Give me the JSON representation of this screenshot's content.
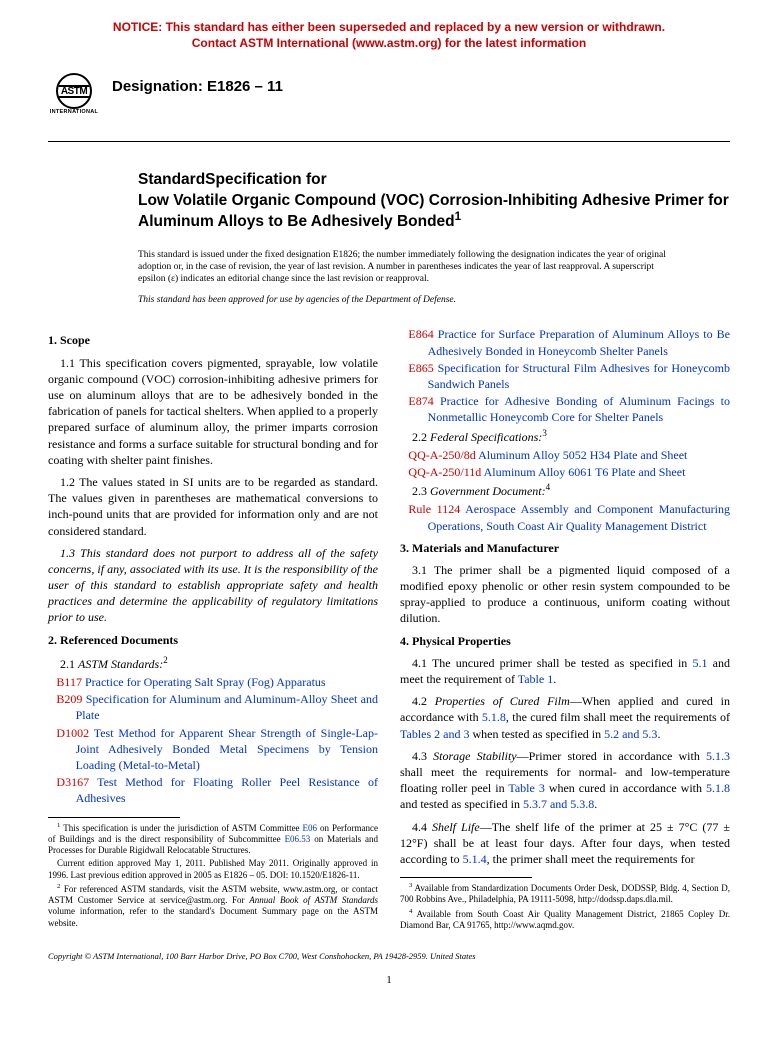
{
  "notice": {
    "line1": "NOTICE: This standard has either been superseded and replaced by a new version or withdrawn.",
    "line2": "Contact ASTM International (www.astm.org) for the latest information",
    "color": "#cc0000",
    "fontsize": 12
  },
  "logo": {
    "text": "ASTM",
    "sub": "INTERNATIONAL"
  },
  "designation": {
    "label": "Designation: E1826 – 11"
  },
  "title": {
    "lead": "StandardSpecification for",
    "main": "Low Volatile Organic Compound (VOC) Corrosion-Inhibiting Adhesive Primer for Aluminum Alloys to Be Adhesively Bonded",
    "sup": "1"
  },
  "issuance": "This standard is issued under the fixed designation E1826; the number immediately following the designation indicates the year of original adoption or, in the case of revision, the year of last revision. A number in parentheses indicates the year of last reapproval. A superscript epsilon (ε) indicates an editorial change since the last revision or reapproval.",
  "dod_note": "This standard has been approved for use by agencies of the Department of Defense.",
  "sections": {
    "scope": {
      "head": "1. Scope"
    },
    "refdocs": {
      "head": "2. Referenced Documents"
    },
    "materials": {
      "head": "3. Materials and Manufacturer"
    },
    "physprop": {
      "head": "4. Physical Properties"
    }
  },
  "scope": {
    "p1": "1.1 This specification covers pigmented, sprayable, low volatile organic compound (VOC) corrosion-inhibiting adhesive primers for use on aluminum alloys that are to be adhesively bonded in the fabrication of panels for tactical shelters. When applied to a properly prepared surface of aluminum alloy, the primer imparts corrosion resistance and forms a surface suitable for structural bonding and for coating with shelter paint finishes.",
    "p2": "1.2 The values stated in SI units are to be regarded as standard. The values given in parentheses are mathematical conversions to inch-pound units that are provided for information only and are not considered standard.",
    "p3": "1.3 This standard does not purport to address all of the safety concerns, if any, associated with its use. It is the responsibility of the user of this standard to establish appropriate safety and health practices and determine the applicability of regulatory limitations prior to use."
  },
  "ref": {
    "astm_head_num": "2.1 ",
    "astm_head": "ASTM Standards:",
    "astm_sup": "2",
    "fed_head_num": "2.2 ",
    "fed_head": "Federal Specifications:",
    "fed_sup": "3",
    "gov_head_num": "2.3 ",
    "gov_head": "Government Document:",
    "gov_sup": "4",
    "items": {
      "b117_code": "B117",
      "b117_txt": " Practice for Operating Salt Spray (Fog) Apparatus",
      "b209_code": "B209",
      "b209_txt": " Specification for Aluminum and Aluminum-Alloy Sheet and Plate",
      "d1002_code": "D1002",
      "d1002_txt": " Test Method for Apparent Shear Strength of Single-Lap-Joint Adhesively Bonded Metal Specimens by Tension Loading (Metal-to-Metal)",
      "d3167_code": "D3167",
      "d3167_txt": " Test Method for Floating Roller Peel Resistance of Adhesives",
      "e864_code": "E864",
      "e864_txt": " Practice for Surface Preparation of Aluminum Alloys to Be Adhesively Bonded in Honeycomb Shelter Panels",
      "e865_code": "E865",
      "e865_txt": " Specification for Structural Film Adhesives for Honeycomb Sandwich Panels",
      "e874_code": "E874",
      "e874_txt": " Practice for Adhesive Bonding of Aluminum Facings to Nonmetallic Honeycomb Core for Shelter Panels",
      "qqa8_code": "QQ-A-250/8d",
      "qqa8_txt": " Aluminum Alloy 5052 H34 Plate and Sheet",
      "qqa11_code": "QQ-A-250/11d",
      "qqa11_txt": " Aluminum Alloy 6061 T6 Plate and Sheet",
      "r1124_code": "Rule 1124",
      "r1124_txt": " Aerospace Assembly and Component Manufacturing Operations, South Coast Air Quality Management District"
    }
  },
  "materials": {
    "p1": "3.1 The primer shall be a pigmented liquid composed of a modified epoxy phenolic or other resin system compounded to be spray-applied to produce a continuous, uniform coating without dilution."
  },
  "phys": {
    "p1a": "4.1 The uncured primer shall be tested as specified in ",
    "p1_ref1": "5.1",
    "p1b": " and meet the requirement of ",
    "p1_ref2": "Table 1",
    "p1c": ".",
    "p2_head": "Properties of Cured Film",
    "p2a": "—When applied and cured in accordance with ",
    "p2_ref1": "5.1.8",
    "p2b": ", the cured film shall meet the requirements of ",
    "p2_ref2": "Tables 2 and 3",
    "p2c": " when tested as specified in ",
    "p2_ref3": "5.2 and 5.3",
    "p2d": ".",
    "p3_head": "Storage Stability",
    "p3a": "—Primer stored in accordance with ",
    "p3_ref1": "5.1.3",
    "p3b": " shall meet the requirements for normal- and low-temperature floating roller peel in ",
    "p3_ref2": "Table 3",
    "p3c": " when cured in accordance with ",
    "p3_ref3": "5.1.8",
    "p3d": " and tested as specified in ",
    "p3_ref4": "5.3.7 and 5.3.8",
    "p3e": ".",
    "p4_head": "Shelf Life",
    "p4a": "—The shelf life of the primer at 25 ± 7°C (77 ± 12°F) shall be at least four days. After four days, when tested according to ",
    "p4_ref1": "5.1.4",
    "p4b": ", the primer shall meet the requirements for"
  },
  "footnotes": {
    "f1a": "This specification is under the jurisdiction of ASTM Committee ",
    "f1_ref1": "E06",
    "f1b": " on Performance of Buildings and is the direct responsibility of Subcommittee ",
    "f1_ref2": "E06.53",
    "f1c": " on Materials and Processes for Durable Rigidwall Relocatable Structures.",
    "f1d": "Current edition approved May 1, 2011. Published May 2011. Originally approved in 1996. Last previous edition approved in 2005 as E1826 – 05. DOI: 10.1520/E1826-11.",
    "f2a": "For referenced ASTM standards, visit the ASTM website, www.astm.org, or contact ASTM Customer Service at service@astm.org. For ",
    "f2b": "Annual Book of ASTM Standards",
    "f2c": " volume information, refer to the standard's Document Summary page on the ASTM website.",
    "f3": "Available from Standardization Documents Order Desk, DODSSP, Bldg. 4, Section D, 700 Robbins Ave., Philadelphia, PA 19111-5098, http://dodssp.daps.dla.mil.",
    "f4": "Available from South Coast Air Quality Management District, 21865 Copley Dr. Diamond Bar, CA 91765, http://www.aqmd.gov."
  },
  "copyright": "Copyright © ASTM International, 100 Barr Harbor Drive, PO Box C700, West Conshohocken, PA 19428-2959. United States",
  "page_number": "1",
  "colors": {
    "link": "#0033cc",
    "refcode": "#cc0000",
    "text": "#000000",
    "background": "#ffffff"
  }
}
